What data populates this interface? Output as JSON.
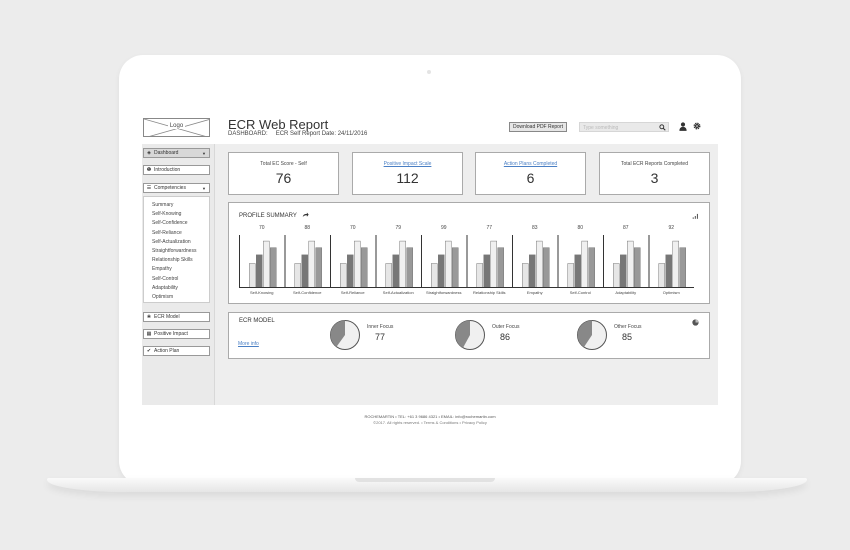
{
  "header": {
    "logo": "Logo",
    "title": "ECR Web Report",
    "dashboard_label": "DASHBOARD:",
    "report_date": "ECR Self Report Date: 24/11/2016",
    "download_label": "Download PDF Report",
    "search_placeholder": "Type something",
    "search_value": ""
  },
  "sidebar": {
    "dashboard": "Dashboard",
    "introduction": "Introduction",
    "competencies": "Competencies",
    "competency_items": [
      "Summary",
      "Self-Knowing",
      "Self-Confidence",
      "Self-Reliance",
      "Self-Actualization",
      "Straightforwardness",
      "Relationship Skills",
      "Empathy",
      "Self-Control",
      "Adaptability",
      "Optimism"
    ],
    "ecr_model": "ECR Model",
    "positive_impact": "Positive Impact",
    "action_plan": "Action Plan"
  },
  "kpis": [
    {
      "label": "Total EC Score - Self",
      "value": "76",
      "link": false
    },
    {
      "label": "Positive Impact Scale",
      "value": "112",
      "link": true
    },
    {
      "label": "Action Plans Completed",
      "value": "6",
      "link": true
    },
    {
      "label": "Total ECR Reports Completed",
      "value": "3",
      "link": false
    }
  ],
  "profile": {
    "title": "PROFILE SUMMARY"
  },
  "chart_data": {
    "type": "bar",
    "categories": [
      "Self-Knowing",
      "Self-Confidence",
      "Self-Reliance",
      "Self-Actualization",
      "Straightforwardness",
      "Relationship Skills",
      "Empathy",
      "Self-Control",
      "Adaptability",
      "Optimism"
    ],
    "group_values": [
      "70",
      "88",
      "70",
      "79",
      "99",
      "77",
      "83",
      "80",
      "87",
      "92"
    ],
    "series": [
      {
        "values": [
          0.48,
          0.48,
          0.48,
          0.48,
          0.48,
          0.48,
          0.48,
          0.48,
          0.48,
          0.48
        ],
        "color": "#e6e6e6"
      },
      {
        "values": [
          0.65,
          0.65,
          0.65,
          0.65,
          0.65,
          0.65,
          0.65,
          0.65,
          0.65,
          0.65
        ],
        "color": "#777777"
      },
      {
        "values": [
          0.92,
          0.92,
          0.92,
          0.92,
          0.92,
          0.92,
          0.92,
          0.92,
          0.92,
          0.92
        ],
        "color": "#f0f0f0"
      },
      {
        "values": [
          0.79,
          0.79,
          0.79,
          0.79,
          0.79,
          0.79,
          0.79,
          0.79,
          0.79,
          0.79
        ],
        "color": "#999999"
      }
    ],
    "ylim": [
      0,
      1
    ]
  },
  "model": {
    "title": "ECR MODEL",
    "more_info": "More info",
    "items": [
      {
        "label": "Inner Focus",
        "value": "77"
      },
      {
        "label": "Outer Focus",
        "value": "86"
      },
      {
        "label": "Other Focus",
        "value": "85"
      }
    ]
  },
  "footer": {
    "line1": "ROCHEMARTIN • TEL: +61 3 9686 4321 • EMAIL: info@rochemartin.com",
    "line2": "©2017. All rights reserved. • Terms & Conditions • Privacy Policy"
  }
}
